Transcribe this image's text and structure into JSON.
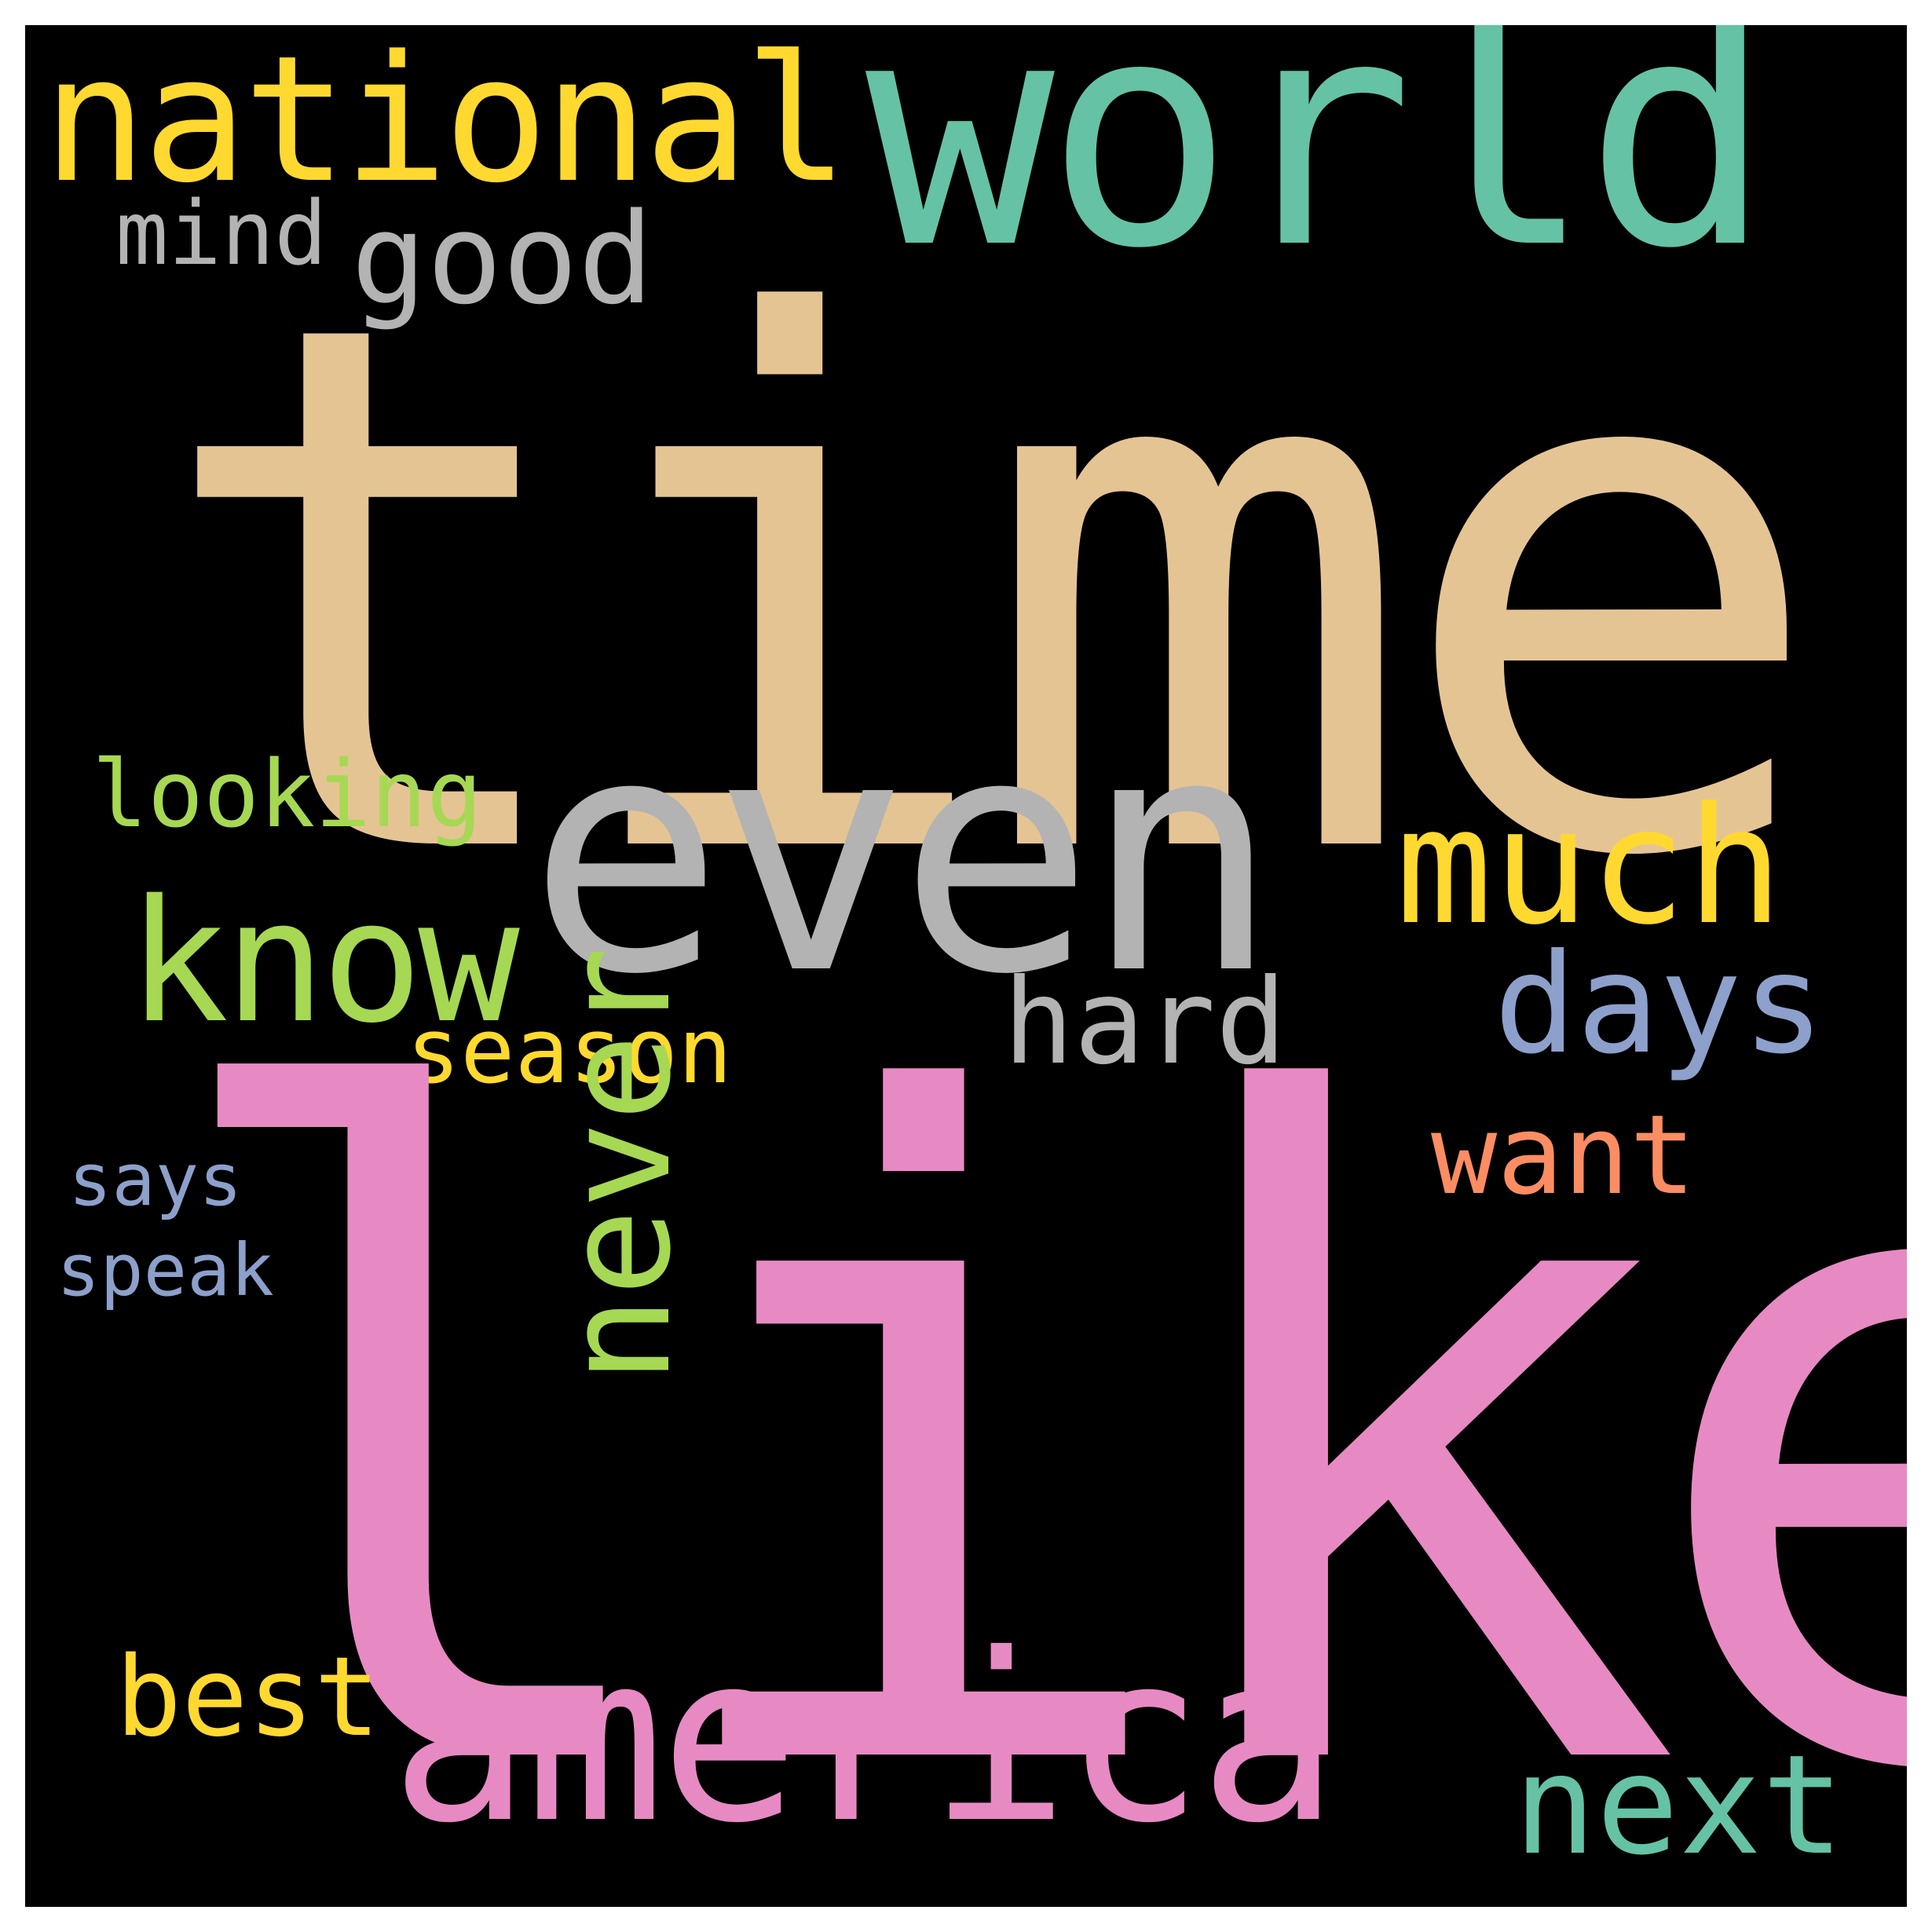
{
  "word_cloud": {
    "background": "#000000",
    "words": {
      "time": {
        "text": "time",
        "color": "#E5C494"
      },
      "like": {
        "text": "like",
        "color": "#E78AC3"
      },
      "world": {
        "text": "world",
        "color": "#66C2A5"
      },
      "national": {
        "text": "national",
        "color": "#FFD92F"
      },
      "even": {
        "text": "even",
        "color": "#B3B3B3"
      },
      "america": {
        "text": "america",
        "color": "#E78AC3"
      },
      "much": {
        "text": "much",
        "color": "#FFD92F"
      },
      "know": {
        "text": "know",
        "color": "#A6D854"
      },
      "days": {
        "text": "days",
        "color": "#8DA0CB"
      },
      "never": {
        "text": "never",
        "color": "#A6D854"
      },
      "good": {
        "text": "good",
        "color": "#B3B3B3"
      },
      "mind": {
        "text": "mind",
        "color": "#B3B3B3"
      },
      "looking": {
        "text": "looking",
        "color": "#A6D854"
      },
      "hard": {
        "text": "hard",
        "color": "#B3B3B3"
      },
      "season": {
        "text": "season",
        "color": "#FFD92F"
      },
      "want": {
        "text": "want",
        "color": "#FC8D62"
      },
      "says": {
        "text": "says",
        "color": "#8DA0CB"
      },
      "speak": {
        "text": "speak",
        "color": "#8DA0CB"
      },
      "best": {
        "text": "best",
        "color": "#FFD92F"
      },
      "next": {
        "text": "next",
        "color": "#66C2A5"
      }
    }
  }
}
